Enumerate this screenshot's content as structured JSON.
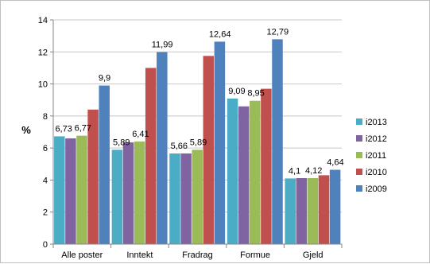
{
  "chart_data": {
    "type": "bar",
    "title": "",
    "xlabel": "",
    "ylabel": "%",
    "ylim": [
      0,
      14
    ],
    "yticks": [
      0,
      2,
      4,
      6,
      8,
      10,
      12,
      14
    ],
    "grid": true,
    "legend_position": "right",
    "categories": [
      "Alle poster",
      "Inntekt",
      "Fradrag",
      "Formue",
      "Gjeld"
    ],
    "series": [
      {
        "name": "i2013",
        "color": "#4bacc6",
        "values": [
          6.73,
          5.89,
          5.66,
          9.09,
          4.1
        ],
        "labels": [
          "6,73",
          "5,89",
          "5,66",
          "9,09",
          "4,1"
        ]
      },
      {
        "name": "i2012",
        "color": "#8064a2",
        "values": [
          6.6,
          6.35,
          5.66,
          8.6,
          4.12
        ],
        "labels": [
          "",
          "",
          "",
          "",
          ""
        ]
      },
      {
        "name": "i2011",
        "color": "#9bbb59",
        "values": [
          6.77,
          6.41,
          5.89,
          8.95,
          4.12
        ],
        "labels": [
          "6,77",
          "6,41",
          "5,89",
          "8,95",
          "4,12"
        ]
      },
      {
        "name": "i2010",
        "color": "#c0504d",
        "values": [
          8.4,
          11.0,
          11.75,
          9.7,
          4.3
        ],
        "labels": [
          "",
          "",
          "",
          "",
          ""
        ]
      },
      {
        "name": "i2009",
        "color": "#4f81bd",
        "values": [
          9.9,
          11.99,
          12.64,
          12.79,
          4.64
        ],
        "labels": [
          "9,9",
          "11,99",
          "12,64",
          "12,79",
          "4,64"
        ]
      }
    ]
  }
}
